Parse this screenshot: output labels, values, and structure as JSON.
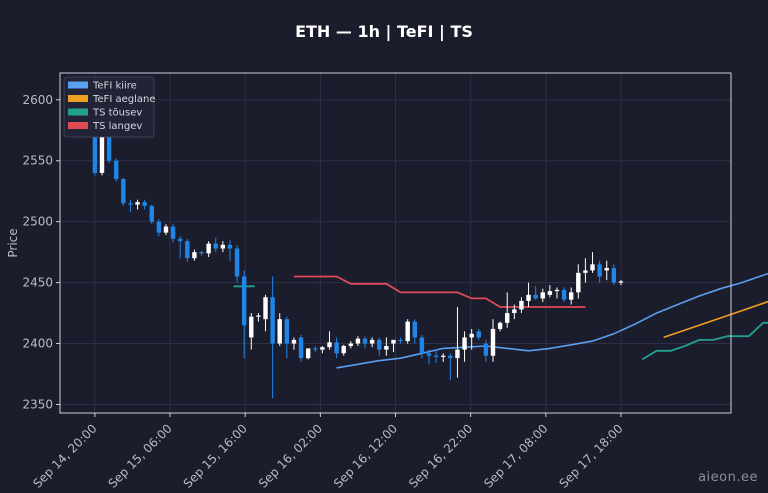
{
  "header": {
    "title": "ETH — 1h  |  TeFI  |  TS"
  },
  "watermark": "aieon.ee",
  "colors": {
    "background": "#1b1c2c",
    "plot_border": "#cfd1da",
    "grid": "#2e3046",
    "up_candle": "#ffffff",
    "down_candle": "#1f86e8",
    "tefi_fast": "#5b9ff0",
    "tefi_slow": "#f0a020",
    "ts_up": "#22a08a",
    "ts_down": "#e04a55"
  },
  "chart_data": {
    "type": "candlestick",
    "title": "ETH — 1h  |  TeFI  |  TS",
    "ylabel": "Price",
    "xlabel": "",
    "ylim": [
      2343,
      2622
    ],
    "x_range": [
      -6.5,
      118.5
    ],
    "yticks": [
      2350,
      2400,
      2450,
      2500,
      2550,
      2600
    ],
    "xticks": [
      {
        "x": 0,
        "label": "Sep 14, 20:00"
      },
      {
        "x": 14,
        "label": "Sep 15, 06:00"
      },
      {
        "x": 28,
        "label": "Sep 15, 16:00"
      },
      {
        "x": 42,
        "label": "Sep 16, 02:00"
      },
      {
        "x": 56,
        "label": "Sep 16, 12:00"
      },
      {
        "x": 70,
        "label": "Sep 16, 22:00"
      },
      {
        "x": 84,
        "label": "Sep 17, 08:00"
      },
      {
        "x": 98,
        "label": "Sep 17, 18:00"
      }
    ],
    "grid": true,
    "legend_position": "top-left",
    "legend": [
      {
        "label": "TeFI kiire",
        "color": "#5b9ff0"
      },
      {
        "label": "TeFI aeglane",
        "color": "#f0a020"
      },
      {
        "label": "TS tõusev",
        "color": "#22a08a"
      },
      {
        "label": "TS langev",
        "color": "#e04a55"
      }
    ],
    "candles": [
      [
        2570,
        2572,
        2538,
        2540
      ],
      [
        2540,
        2572,
        2538,
        2570
      ],
      [
        2570,
        2572,
        2548,
        2550
      ],
      [
        2550,
        2552,
        2533,
        2535
      ],
      [
        2535,
        2536,
        2513,
        2515
      ],
      [
        2515,
        2518,
        2508,
        2514
      ],
      [
        2514,
        2518,
        2510,
        2516
      ],
      [
        2516,
        2518,
        2510,
        2513
      ],
      [
        2513,
        2514,
        2498,
        2500
      ],
      [
        2500,
        2502,
        2488,
        2491
      ],
      [
        2491,
        2498,
        2489,
        2496
      ],
      [
        2496,
        2498,
        2483,
        2486
      ],
      [
        2486,
        2488,
        2470,
        2484
      ],
      [
        2484,
        2486,
        2467,
        2470
      ],
      [
        2470,
        2477,
        2468,
        2475
      ],
      [
        2475,
        2476,
        2472,
        2474
      ],
      [
        2474,
        2484,
        2471,
        2482
      ],
      [
        2482,
        2487,
        2475,
        2478
      ],
      [
        2478,
        2484,
        2475,
        2481
      ],
      [
        2481,
        2485,
        2468,
        2478
      ],
      [
        2478,
        2481,
        2450,
        2455
      ],
      [
        2455,
        2460,
        2388,
        2415
      ],
      [
        2405,
        2425,
        2395,
        2422
      ],
      [
        2422,
        2425,
        2418,
        2423
      ],
      [
        2420,
        2440,
        2410,
        2438
      ],
      [
        2438,
        2455,
        2355,
        2400
      ],
      [
        2400,
        2425,
        2398,
        2420
      ],
      [
        2420,
        2422,
        2388,
        2400
      ],
      [
        2400,
        2405,
        2395,
        2403
      ],
      [
        2405,
        2407,
        2385,
        2388
      ],
      [
        2388,
        2396,
        2387,
        2396
      ],
      [
        2396,
        2398,
        2393,
        2395
      ],
      [
        2395,
        2398,
        2392,
        2397
      ],
      [
        2397,
        2410,
        2395,
        2401
      ],
      [
        2401,
        2405,
        2388,
        2392
      ],
      [
        2392,
        2399,
        2390,
        2398
      ],
      [
        2398,
        2402,
        2396,
        2400
      ],
      [
        2400,
        2406,
        2398,
        2404
      ],
      [
        2404,
        2406,
        2396,
        2400
      ],
      [
        2400,
        2405,
        2397,
        2403
      ],
      [
        2403,
        2405,
        2390,
        2395
      ],
      [
        2395,
        2405,
        2390,
        2398
      ],
      [
        2400,
        2402,
        2393,
        2403
      ],
      [
        2403,
        2405,
        2400,
        2402
      ],
      [
        2402,
        2420,
        2400,
        2418
      ],
      [
        2418,
        2420,
        2400,
        2405
      ],
      [
        2405,
        2407,
        2388,
        2392
      ],
      [
        2392,
        2395,
        2383,
        2390
      ],
      [
        2390,
        2395,
        2384,
        2389
      ],
      [
        2389,
        2392,
        2385,
        2390
      ],
      [
        2390,
        2392,
        2370,
        2388
      ],
      [
        2388,
        2430,
        2372,
        2395
      ],
      [
        2395,
        2410,
        2385,
        2405
      ],
      [
        2405,
        2412,
        2395,
        2408
      ],
      [
        2410,
        2412,
        2403,
        2405
      ],
      [
        2400,
        2403,
        2385,
        2390
      ],
      [
        2390,
        2420,
        2385,
        2412
      ],
      [
        2412,
        2418,
        2410,
        2417
      ],
      [
        2417,
        2442,
        2413,
        2425
      ],
      [
        2425,
        2432,
        2420,
        2428
      ],
      [
        2428,
        2438,
        2425,
        2435
      ],
      [
        2435,
        2450,
        2430,
        2440
      ],
      [
        2440,
        2447,
        2436,
        2437
      ],
      [
        2437,
        2445,
        2434,
        2442
      ],
      [
        2440,
        2448,
        2438,
        2443
      ],
      [
        2443,
        2446,
        2437,
        2444
      ],
      [
        2444,
        2446,
        2434,
        2436
      ],
      [
        2436,
        2446,
        2432,
        2442
      ],
      [
        2442,
        2465,
        2437,
        2458
      ],
      [
        2458,
        2470,
        2450,
        2460
      ],
      [
        2460,
        2475,
        2458,
        2465
      ],
      [
        2465,
        2468,
        2450,
        2455
      ],
      [
        2460,
        2468,
        2452,
        2462
      ],
      [
        2462,
        2465,
        2448,
        2450
      ],
      [
        2450,
        2452,
        2448,
        2451
      ]
    ],
    "series": [
      {
        "name": "TeFI kiire",
        "color": "#5b9ff0",
        "points": [
          [
            34,
            2380
          ],
          [
            37,
            2383
          ],
          [
            40,
            2386
          ],
          [
            43,
            2388
          ],
          [
            46,
            2392
          ],
          [
            49,
            2396
          ],
          [
            52,
            2397
          ],
          [
            55,
            2398
          ],
          [
            58,
            2396
          ],
          [
            61,
            2394
          ],
          [
            64,
            2396
          ],
          [
            67,
            2399
          ],
          [
            70,
            2402
          ],
          [
            73,
            2408
          ],
          [
            76,
            2416
          ],
          [
            79,
            2425
          ],
          [
            82,
            2432
          ],
          [
            85,
            2439
          ],
          [
            88,
            2445
          ],
          [
            91,
            2450
          ],
          [
            94,
            2456
          ],
          [
            97,
            2462
          ],
          [
            100,
            2466
          ],
          [
            103,
            2467
          ]
        ]
      },
      {
        "name": "TeFI aeglane",
        "color": "#f0a020",
        "points": [
          [
            80,
            2405
          ],
          [
            85,
            2415
          ],
          [
            90,
            2425
          ],
          [
            95,
            2435
          ],
          [
            100,
            2446
          ],
          [
            104,
            2459
          ]
        ]
      },
      {
        "name": "TS tõusev",
        "color": "#22a08a",
        "steps": [
          [
            19.5,
            2447
          ],
          [
            22.5,
            2447
          ],
          null,
          [
            77,
            2387
          ],
          [
            79,
            2394
          ],
          [
            81,
            2394
          ],
          [
            83,
            2398
          ],
          [
            85,
            2403
          ],
          [
            87,
            2403
          ],
          [
            89,
            2406
          ],
          [
            92,
            2406
          ],
          [
            94,
            2417
          ],
          [
            97,
            2417
          ],
          [
            99,
            2422
          ],
          [
            104,
            2422
          ]
        ]
      },
      {
        "name": "TS langev",
        "color": "#e04a55",
        "steps": [
          [
            28,
            2455
          ],
          [
            34,
            2455
          ],
          [
            36,
            2449
          ],
          [
            41,
            2449
          ],
          [
            43,
            2442
          ],
          [
            51,
            2442
          ],
          [
            53,
            2437
          ],
          [
            55,
            2437
          ],
          [
            57,
            2430
          ],
          [
            69,
            2430
          ]
        ]
      }
    ]
  }
}
